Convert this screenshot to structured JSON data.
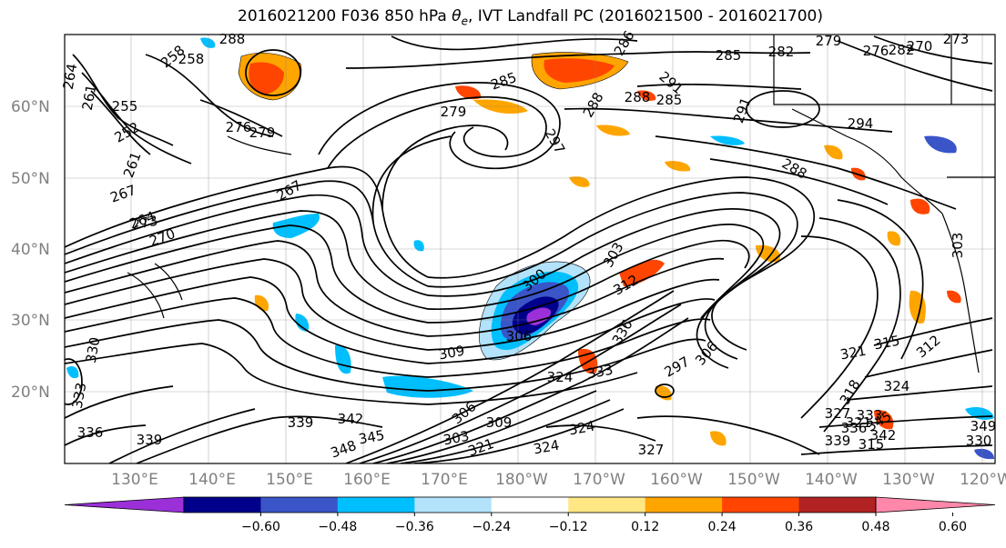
{
  "title": {
    "pre": "2016021200 F036 850 hPa ",
    "symbol": "θ",
    "sub": "e",
    "post": ", IVT Landfall PC (2016021500 - 2016021700)"
  },
  "lat_ticks": [
    "20°N",
    "30°N",
    "40°N",
    "50°N",
    "60°N"
  ],
  "lon_ticks": [
    "130°E",
    "140°E",
    "150°E",
    "160°E",
    "170°E",
    "180°W",
    "170°W",
    "160°W",
    "150°W",
    "140°W",
    "130°W",
    "120°W"
  ],
  "colorbar": {
    "colors": [
      "#9b30d9",
      "#00008b",
      "#3a55c8",
      "#00bfff",
      "#b2e3fb",
      "#ffffff",
      "#ffe784",
      "#ffa500",
      "#ff4500",
      "#b22222",
      "#ff88aa"
    ],
    "tick_labels": [
      "−0.60",
      "−0.48",
      "−0.36",
      "−0.24",
      "−0.12",
      "0.12",
      "0.24",
      "0.36",
      "0.48",
      "0.60"
    ]
  },
  "contour_labels": [
    "264",
    "261",
    "255",
    "258",
    "252",
    "261",
    "267",
    "264",
    "270",
    "273",
    "258",
    "276",
    "279",
    "288",
    "285",
    "282",
    "279",
    "276",
    "270",
    "273",
    "267",
    "285",
    "288",
    "286",
    "279",
    "291",
    "288",
    "294",
    "297",
    "300",
    "303",
    "306",
    "309",
    "312",
    "315",
    "318",
    "321",
    "324",
    "333",
    "336",
    "339",
    "342",
    "345",
    "348",
    "306",
    "309",
    "303",
    "321",
    "324",
    "327",
    "324",
    "330",
    "333",
    "336",
    "339",
    "342",
    "345",
    "349",
    "312",
    "315",
    "303",
    "306",
    "297",
    "291",
    "288",
    "285",
    "282",
    "339",
    "336",
    "333",
    "330",
    "327",
    "324",
    "321"
  ]
}
